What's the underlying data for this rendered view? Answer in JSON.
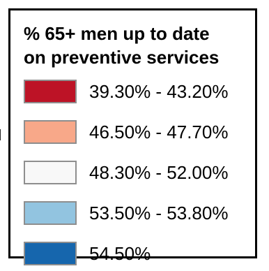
{
  "chart_data": {
    "type": "legend",
    "title_lines": [
      "% 65+ men up to date",
      "on preventive services"
    ],
    "legend": [
      {
        "label": "39.30% - 43.20%",
        "color": "#bd1326"
      },
      {
        "label": "46.50% - 47.70%",
        "color": "#f8a889"
      },
      {
        "label": "48.30% - 52.00%",
        "color": "#f8f8f8"
      },
      {
        "label": "53.50% - 53.80%",
        "color": "#92c4e0"
      },
      {
        "label": "54.50%",
        "color": "#1666ad"
      }
    ]
  }
}
